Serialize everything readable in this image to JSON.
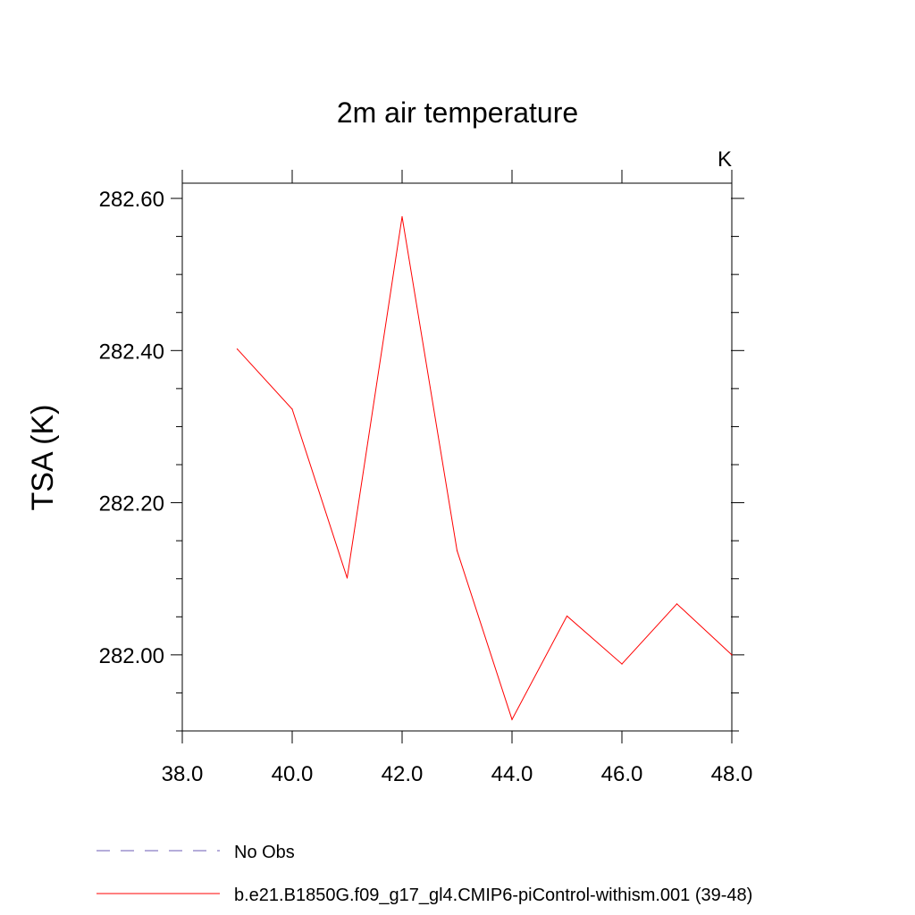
{
  "chart_data": {
    "type": "line",
    "title": "2m air temperature",
    "units_label": "K",
    "ylabel": "TSA  (K)",
    "xlabel": "",
    "xlim": [
      38.0,
      48.0
    ],
    "ylim": [
      281.9,
      282.62
    ],
    "x_ticks": [
      38.0,
      40.0,
      42.0,
      44.0,
      46.0,
      48.0
    ],
    "x_tick_labels": [
      "38.0",
      "40.0",
      "42.0",
      "44.0",
      "46.0",
      "48.0"
    ],
    "x_minor_ticks": [],
    "y_ticks": [
      282.0,
      282.2,
      282.4,
      282.6
    ],
    "y_tick_labels": [
      "282.00",
      "282.20",
      "282.40",
      "282.60"
    ],
    "y_minor_ticks": [
      281.9,
      281.95,
      282.05,
      282.1,
      282.15,
      282.25,
      282.3,
      282.35,
      282.45,
      282.5,
      282.55
    ],
    "grid": false,
    "legend_position": "bottom",
    "series": [
      {
        "name": "b.e21.B1850G.f09_g17_gl4.CMIP6-piControl-withism.001 (39-48)",
        "color": "#ff0000",
        "dash": "solid",
        "x": [
          39,
          40,
          41,
          42,
          43,
          44,
          45,
          46,
          47,
          48
        ],
        "values": [
          282.402,
          282.323,
          282.101,
          282.576,
          282.137,
          281.915,
          282.051,
          281.988,
          282.067,
          282.0
        ]
      }
    ],
    "legend": [
      {
        "label": "No Obs",
        "color": "#6b5bb5",
        "dash": "dashed"
      },
      {
        "label": "b.e21.B1850G.f09_g17_gl4.CMIP6-piControl-withism.001 (39-48)",
        "color": "#ff0000",
        "dash": "solid"
      }
    ]
  }
}
